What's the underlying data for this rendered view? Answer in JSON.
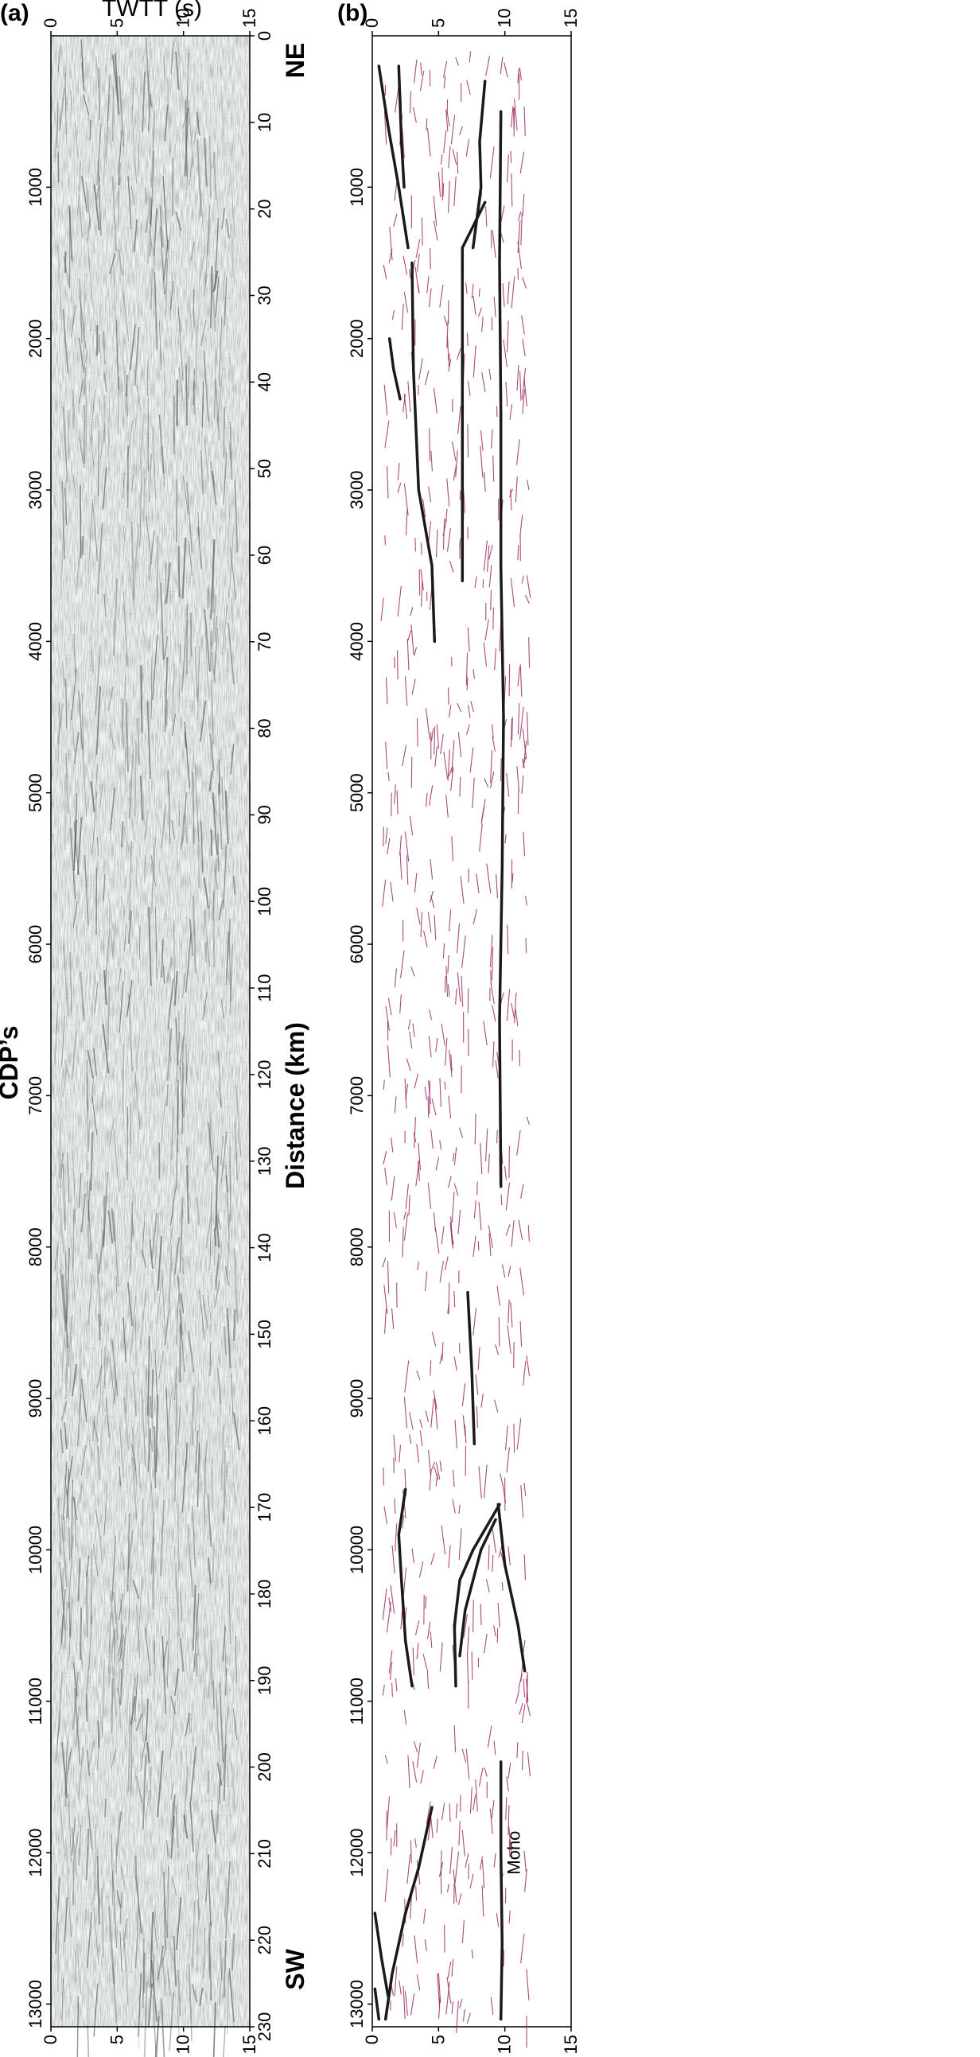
{
  "figure": {
    "panel_a_label": "(a)",
    "panel_b_label": "(b)",
    "twtt_label": "TWTT (s)",
    "cdp_label": "CDP’s",
    "distance_label": "Distance (km)",
    "ne_label": "NE",
    "sw_label": "SW",
    "moho_label": "Moho"
  },
  "chart_data": [
    {
      "type": "seismic-section",
      "panel": "(a)",
      "title": "",
      "time_axis_label": "TWTT (s)",
      "time_ticks": [
        0,
        5,
        10,
        15
      ],
      "time_range_s": [
        0,
        15
      ],
      "cdp_axis_label": "CDP’s",
      "cdp_ticks": [
        1000,
        2000,
        3000,
        4000,
        5000,
        6000,
        7000,
        8000,
        9000,
        10000,
        11000,
        12000,
        13000
      ],
      "cdp_range": [
        0,
        13150
      ],
      "distance_axis_label": "Distance (km)",
      "distance_ticks": [
        0,
        10,
        20,
        30,
        40,
        50,
        60,
        70,
        80,
        90,
        100,
        110,
        120,
        130,
        140,
        150,
        160,
        170,
        180,
        190,
        200,
        210,
        220,
        230
      ],
      "distance_range_km": [
        0,
        230
      ],
      "ends": {
        "top": "NE",
        "bottom": "SW"
      }
    },
    {
      "type": "line-drawing",
      "panel": "(b)",
      "title": "",
      "time_ticks": [
        0,
        5,
        10,
        15
      ],
      "time_range_s": [
        0,
        15
      ],
      "cdp_ticks": [
        1000,
        2000,
        3000,
        4000,
        5000,
        6000,
        7000,
        8000,
        9000,
        10000,
        11000,
        12000,
        13000
      ],
      "cdp_range": [
        0,
        13150
      ],
      "annotations": [
        {
          "text": "Moho",
          "cdp": 12000,
          "twtt_s": 10.3
        }
      ],
      "major_reflectors": [
        {
          "name": "upper-reflector-ne",
          "points": [
            [
              200,
              0.5
            ],
            [
              600,
              1.2
            ],
            [
              1000,
              2.0
            ],
            [
              1400,
              2.7
            ]
          ]
        },
        {
          "name": "upper-reflector-2",
          "points": [
            [
              200,
              2.0
            ],
            [
              700,
              2.2
            ],
            [
              1000,
              2.4
            ]
          ]
        },
        {
          "name": "mid-reflector-ne",
          "points": [
            [
              1100,
              8.5
            ],
            [
              1400,
              6.8
            ],
            [
              2000,
              6.8
            ],
            [
              3000,
              6.8
            ],
            [
              3600,
              6.8
            ]
          ]
        },
        {
          "name": "mid-reflector-b",
          "points": [
            [
              300,
              8.5
            ],
            [
              700,
              8.1
            ],
            [
              1000,
              8.2
            ],
            [
              1400,
              7.6
            ]
          ]
        },
        {
          "name": "crust-ramp",
          "points": [
            [
              1500,
              3.0
            ],
            [
              2200,
              3.1
            ],
            [
              3000,
              3.5
            ],
            [
              3500,
              4.5
            ],
            [
              4000,
              4.7
            ]
          ]
        },
        {
          "name": "moho-ne",
          "points": [
            [
              500,
              9.7
            ],
            [
              1500,
              9.6
            ],
            [
              2500,
              9.7
            ],
            [
              3500,
              9.7
            ],
            [
              4500,
              9.9
            ],
            [
              5500,
              9.8
            ],
            [
              6500,
              9.6
            ],
            [
              7600,
              9.7
            ]
          ]
        },
        {
          "name": "thrust-ne",
          "points": [
            [
              2000,
              1.3
            ],
            [
              2200,
              1.6
            ],
            [
              2400,
              2.1
            ]
          ]
        },
        {
          "name": "mid-bowl",
          "points": [
            [
              10900,
              6.3
            ],
            [
              10500,
              6.2
            ],
            [
              10200,
              6.6
            ],
            [
              10000,
              7.6
            ],
            [
              9700,
              9.6
            ]
          ]
        },
        {
          "name": "mid-bowl-b",
          "points": [
            [
              10700,
              6.6
            ],
            [
              10400,
              7.0
            ],
            [
              10000,
              8.2
            ],
            [
              9800,
              9.3
            ]
          ]
        },
        {
          "name": "sw-dipping",
          "points": [
            [
              9700,
              9.5
            ],
            [
              10100,
              10.0
            ],
            [
              10500,
              11.0
            ],
            [
              10800,
              11.5
            ]
          ]
        },
        {
          "name": "upper-arch",
          "points": [
            [
              9600,
              2.5
            ],
            [
              9900,
              2.0
            ],
            [
              10200,
              2.2
            ],
            [
              10600,
              2.5
            ],
            [
              10900,
              3.0
            ]
          ]
        },
        {
          "name": "moho-sw",
          "points": [
            [
              11400,
              9.7
            ],
            [
              12000,
              9.7
            ],
            [
              12600,
              9.8
            ],
            [
              13100,
              9.7
            ]
          ]
        },
        {
          "name": "shallow-sw-1",
          "points": [
            [
              11700,
              4.5
            ],
            [
              12100,
              3.5
            ],
            [
              12400,
              2.5
            ],
            [
              12800,
              1.5
            ],
            [
              13100,
              1.0
            ]
          ]
        },
        {
          "name": "shallow-sw-2",
          "points": [
            [
              12400,
              0.2
            ],
            [
              12700,
              0.7
            ],
            [
              12950,
              1.2
            ]
          ]
        },
        {
          "name": "shallow-sw-3",
          "points": [
            [
              12900,
              0.2
            ],
            [
              13100,
              0.5
            ]
          ]
        },
        {
          "name": "mid-sw-upper",
          "points": [
            [
              8300,
              7.2
            ],
            [
              8800,
              7.5
            ],
            [
              9300,
              7.7
            ]
          ]
        }
      ]
    }
  ]
}
